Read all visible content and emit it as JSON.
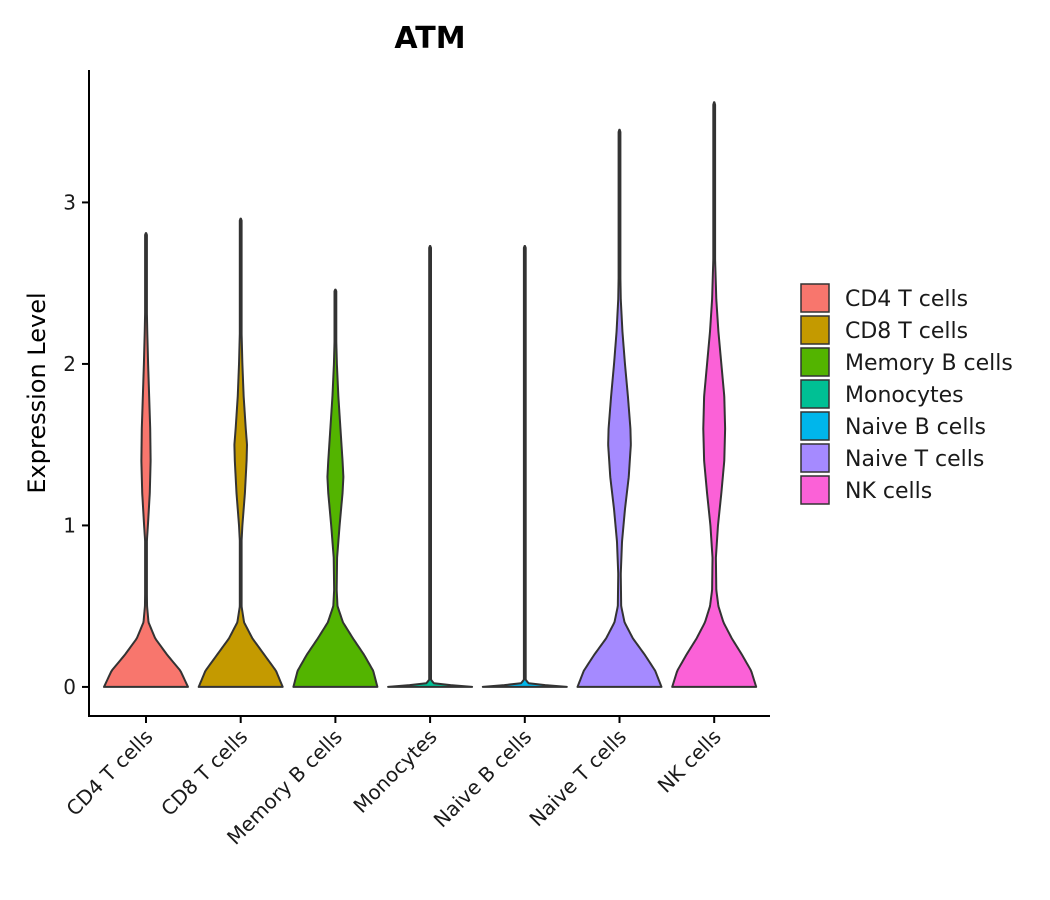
{
  "chart_data": {
    "type": "violin",
    "title": "ATM",
    "xlabel": "",
    "ylabel": "Expression Level",
    "ylim": [
      -0.18,
      3.82
    ],
    "yticks": [
      0,
      1,
      2,
      3
    ],
    "grid": false,
    "legend_position": "right",
    "categories": [
      "CD4 T cells",
      "CD8 T cells",
      "Memory B cells",
      "Monocytes",
      "Naive B cells",
      "Naive T cells",
      "NK cells"
    ],
    "colors": [
      "#F8766D",
      "#C49A00",
      "#53B400",
      "#00C094",
      "#00B6EB",
      "#A58AFF",
      "#FB61D7"
    ],
    "series": [
      {
        "name": "CD4 T cells",
        "max": 2.81,
        "profile": [
          [
            0,
            1.0
          ],
          [
            0.1,
            0.82
          ],
          [
            0.2,
            0.5
          ],
          [
            0.3,
            0.22
          ],
          [
            0.4,
            0.06
          ],
          [
            0.5,
            0.025
          ],
          [
            0.7,
            0.015
          ],
          [
            0.9,
            0.02
          ],
          [
            1.0,
            0.045
          ],
          [
            1.2,
            0.09
          ],
          [
            1.4,
            0.11
          ],
          [
            1.6,
            0.1
          ],
          [
            1.8,
            0.075
          ],
          [
            2.0,
            0.05
          ],
          [
            2.2,
            0.03
          ],
          [
            2.4,
            0.015
          ],
          [
            2.6,
            0.006
          ],
          [
            2.81,
            0.0
          ]
        ]
      },
      {
        "name": "CD8 T cells",
        "max": 2.9,
        "profile": [
          [
            0,
            1.0
          ],
          [
            0.1,
            0.84
          ],
          [
            0.2,
            0.56
          ],
          [
            0.3,
            0.28
          ],
          [
            0.4,
            0.08
          ],
          [
            0.5,
            0.02
          ],
          [
            0.7,
            0.015
          ],
          [
            0.9,
            0.02
          ],
          [
            1.0,
            0.04
          ],
          [
            1.2,
            0.1
          ],
          [
            1.4,
            0.14
          ],
          [
            1.5,
            0.15
          ],
          [
            1.6,
            0.12
          ],
          [
            1.8,
            0.07
          ],
          [
            2.0,
            0.04
          ],
          [
            2.2,
            0.02
          ],
          [
            2.5,
            0.008
          ],
          [
            2.9,
            0.0
          ]
        ]
      },
      {
        "name": "Memory B cells",
        "max": 2.46,
        "profile": [
          [
            0,
            1.0
          ],
          [
            0.1,
            0.9
          ],
          [
            0.2,
            0.68
          ],
          [
            0.3,
            0.42
          ],
          [
            0.4,
            0.18
          ],
          [
            0.5,
            0.05
          ],
          [
            0.6,
            0.03
          ],
          [
            0.8,
            0.04
          ],
          [
            1.0,
            0.1
          ],
          [
            1.2,
            0.17
          ],
          [
            1.3,
            0.19
          ],
          [
            1.4,
            0.17
          ],
          [
            1.6,
            0.12
          ],
          [
            1.8,
            0.07
          ],
          [
            2.0,
            0.035
          ],
          [
            2.2,
            0.015
          ],
          [
            2.46,
            0.0
          ]
        ]
      },
      {
        "name": "Monocytes",
        "max": 2.73,
        "profile": [
          [
            0,
            1.0
          ],
          [
            0.02,
            0.1
          ],
          [
            0.05,
            0.0
          ],
          [
            2.73,
            0.0
          ]
        ]
      },
      {
        "name": "Naive B cells",
        "max": 2.73,
        "profile": [
          [
            0,
            1.0
          ],
          [
            0.02,
            0.1
          ],
          [
            0.05,
            0.0
          ],
          [
            2.73,
            0.0
          ]
        ]
      },
      {
        "name": "Naive T cells",
        "max": 3.45,
        "profile": [
          [
            0,
            1.0
          ],
          [
            0.1,
            0.85
          ],
          [
            0.2,
            0.6
          ],
          [
            0.3,
            0.32
          ],
          [
            0.4,
            0.12
          ],
          [
            0.5,
            0.04
          ],
          [
            0.7,
            0.03
          ],
          [
            0.9,
            0.06
          ],
          [
            1.1,
            0.13
          ],
          [
            1.3,
            0.22
          ],
          [
            1.5,
            0.27
          ],
          [
            1.6,
            0.26
          ],
          [
            1.8,
            0.2
          ],
          [
            2.0,
            0.13
          ],
          [
            2.2,
            0.07
          ],
          [
            2.4,
            0.03
          ],
          [
            2.7,
            0.01
          ],
          [
            3.0,
            0.004
          ],
          [
            3.45,
            0.0
          ]
        ]
      },
      {
        "name": "NK cells",
        "max": 3.62,
        "profile": [
          [
            0,
            1.0
          ],
          [
            0.1,
            0.88
          ],
          [
            0.2,
            0.66
          ],
          [
            0.3,
            0.42
          ],
          [
            0.4,
            0.22
          ],
          [
            0.5,
            0.1
          ],
          [
            0.6,
            0.05
          ],
          [
            0.8,
            0.04
          ],
          [
            1.0,
            0.09
          ],
          [
            1.2,
            0.17
          ],
          [
            1.4,
            0.24
          ],
          [
            1.6,
            0.26
          ],
          [
            1.8,
            0.24
          ],
          [
            2.0,
            0.17
          ],
          [
            2.2,
            0.1
          ],
          [
            2.4,
            0.05
          ],
          [
            2.7,
            0.015
          ],
          [
            3.0,
            0.005
          ],
          [
            3.62,
            0.0
          ]
        ]
      }
    ]
  }
}
